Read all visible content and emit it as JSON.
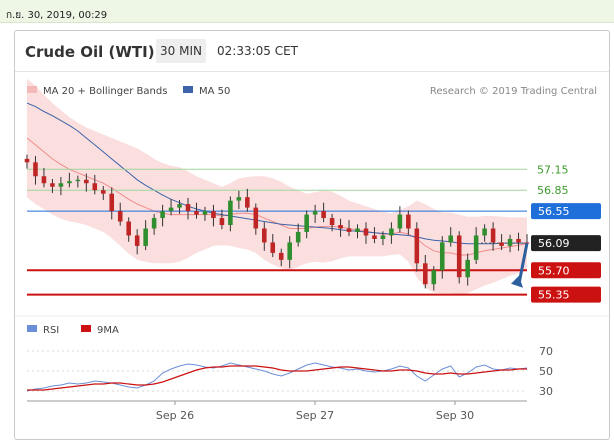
{
  "top_timestamp": "ก.ย. 30, 2019, 00:29",
  "header": {
    "title": "Crude Oil (WTI)",
    "interval": "30 MIN",
    "time_left": "02:33:05 CET"
  },
  "colors": {
    "ma20": "#f08b8b",
    "ma50": "#3d63a8",
    "support": "#cc1111",
    "resistance": "#9fd69a",
    "pivot": "#1e6fd9",
    "arrow": "#2d5f9e",
    "rsi": "#6b8fd6",
    "rsi_ma": "#cc1111",
    "candle_up": "#2f8f2f",
    "candle_down": "#c02525"
  },
  "chart_data": [
    {
      "type": "line",
      "legend": [
        {
          "name": "MA 20 + Bollinger Bands",
          "swatch": "#f2a0a0"
        },
        {
          "name": "MA 50",
          "swatch": "#3d63a8"
        }
      ],
      "copyright": "Research © 2019 Trading Central",
      "x_ticks": [
        "Sep 26",
        "Sep 27",
        "Sep 30"
      ],
      "y_range": [
        54.9,
        57.7
      ],
      "levels": [
        {
          "value": 57.15,
          "label": "57.15",
          "style": "resistance"
        },
        {
          "value": 56.85,
          "label": "56.85",
          "style": "resistance"
        },
        {
          "value": 56.55,
          "label": "56.55",
          "style": "pivot"
        },
        {
          "value": 56.09,
          "label": "56.09",
          "style": "last"
        },
        {
          "value": 55.7,
          "label": "55.70",
          "style": "support"
        },
        {
          "value": 55.35,
          "label": "55.35",
          "style": "support"
        }
      ],
      "close": [
        57.25,
        57.05,
        56.95,
        56.9,
        56.95,
        56.98,
        57.0,
        56.95,
        56.85,
        56.8,
        56.55,
        56.4,
        56.2,
        56.05,
        56.3,
        56.45,
        56.55,
        56.6,
        56.65,
        56.55,
        56.5,
        56.55,
        56.45,
        56.35,
        56.7,
        56.75,
        56.6,
        56.3,
        56.1,
        55.95,
        55.85,
        56.1,
        56.25,
        56.5,
        56.55,
        56.45,
        56.35,
        56.3,
        56.25,
        56.3,
        56.2,
        56.15,
        56.2,
        56.3,
        56.5,
        56.3,
        55.8,
        55.5,
        55.7,
        56.1,
        56.2,
        55.6,
        55.85,
        56.2,
        56.3,
        56.1,
        56.05,
        56.15,
        56.1,
        56.09
      ],
      "ma50": [
        58.1,
        58.05,
        57.98,
        57.92,
        57.85,
        57.78,
        57.7,
        57.6,
        57.5,
        57.4,
        57.3,
        57.2,
        57.1,
        57.0,
        56.92,
        56.85,
        56.78,
        56.72,
        56.67,
        56.62,
        56.58,
        56.55,
        56.52,
        56.5,
        56.48,
        56.46,
        56.44,
        56.42,
        56.4,
        56.38,
        56.36,
        56.35,
        56.34,
        56.33,
        56.32,
        56.31,
        56.3,
        56.28,
        56.27,
        56.26,
        56.25,
        56.24,
        56.23,
        56.22,
        56.21,
        56.2,
        56.18,
        56.15,
        56.13,
        56.12,
        56.11,
        56.09,
        56.08,
        56.08,
        56.08,
        56.08,
        56.09,
        56.09,
        56.09,
        56.09
      ],
      "ma20": [
        57.6,
        57.5,
        57.4,
        57.3,
        57.22,
        57.15,
        57.1,
        57.05,
        57.0,
        56.95,
        56.88,
        56.8,
        56.72,
        56.65,
        56.6,
        56.55,
        56.52,
        56.5,
        56.5,
        56.5,
        56.5,
        56.5,
        56.5,
        56.48,
        56.5,
        56.52,
        56.52,
        56.5,
        56.45,
        56.4,
        56.35,
        56.3,
        56.3,
        56.3,
        56.32,
        56.33,
        56.33,
        56.32,
        56.3,
        56.28,
        56.26,
        56.24,
        56.22,
        56.22,
        56.25,
        56.22,
        56.15,
        56.05,
        55.98,
        55.95,
        55.95,
        55.92,
        55.92,
        55.95,
        55.98,
        56.0,
        56.02,
        56.04,
        56.06,
        56.08
      ],
      "band_width": [
        0.85,
        0.85,
        0.82,
        0.8,
        0.78,
        0.75,
        0.72,
        0.7,
        0.7,
        0.7,
        0.72,
        0.75,
        0.78,
        0.8,
        0.78,
        0.75,
        0.72,
        0.7,
        0.68,
        0.62,
        0.55,
        0.5,
        0.45,
        0.42,
        0.45,
        0.5,
        0.52,
        0.55,
        0.6,
        0.62,
        0.62,
        0.6,
        0.55,
        0.5,
        0.5,
        0.52,
        0.5,
        0.45,
        0.4,
        0.38,
        0.36,
        0.34,
        0.32,
        0.3,
        0.32,
        0.4,
        0.55,
        0.6,
        0.6,
        0.58,
        0.58,
        0.58,
        0.55,
        0.52,
        0.5,
        0.48,
        0.45,
        0.42,
        0.4,
        0.38
      ]
    },
    {
      "type": "line",
      "legend": [
        {
          "name": "RSI",
          "swatch": "#6b8fd6"
        },
        {
          "name": "9MA",
          "swatch": "#cc1111"
        }
      ],
      "y_ticks": [
        70,
        50,
        30
      ],
      "y_range": [
        20,
        80
      ],
      "rsi": [
        30,
        32,
        33,
        35,
        36,
        38,
        37,
        38,
        40,
        39,
        38,
        36,
        34,
        33,
        36,
        40,
        48,
        52,
        55,
        57,
        56,
        54,
        53,
        55,
        58,
        56,
        54,
        52,
        50,
        47,
        45,
        48,
        52,
        56,
        58,
        56,
        54,
        53,
        51,
        52,
        50,
        49,
        50,
        52,
        55,
        53,
        45,
        40,
        46,
        52,
        55,
        44,
        48,
        54,
        56,
        52,
        51,
        53,
        52,
        53
      ],
      "rsi_ma": [
        31,
        31,
        31,
        32,
        33,
        34,
        35,
        36,
        37,
        37,
        38,
        38,
        37,
        36,
        36,
        37,
        39,
        42,
        45,
        48,
        51,
        53,
        54,
        54,
        55,
        55,
        55,
        55,
        54,
        53,
        51,
        50,
        50,
        50,
        51,
        52,
        53,
        54,
        54,
        53,
        52,
        51,
        50,
        50,
        51,
        51,
        50,
        48,
        47,
        47,
        48,
        47,
        47,
        48,
        49,
        50,
        51,
        51,
        52,
        52
      ]
    }
  ]
}
